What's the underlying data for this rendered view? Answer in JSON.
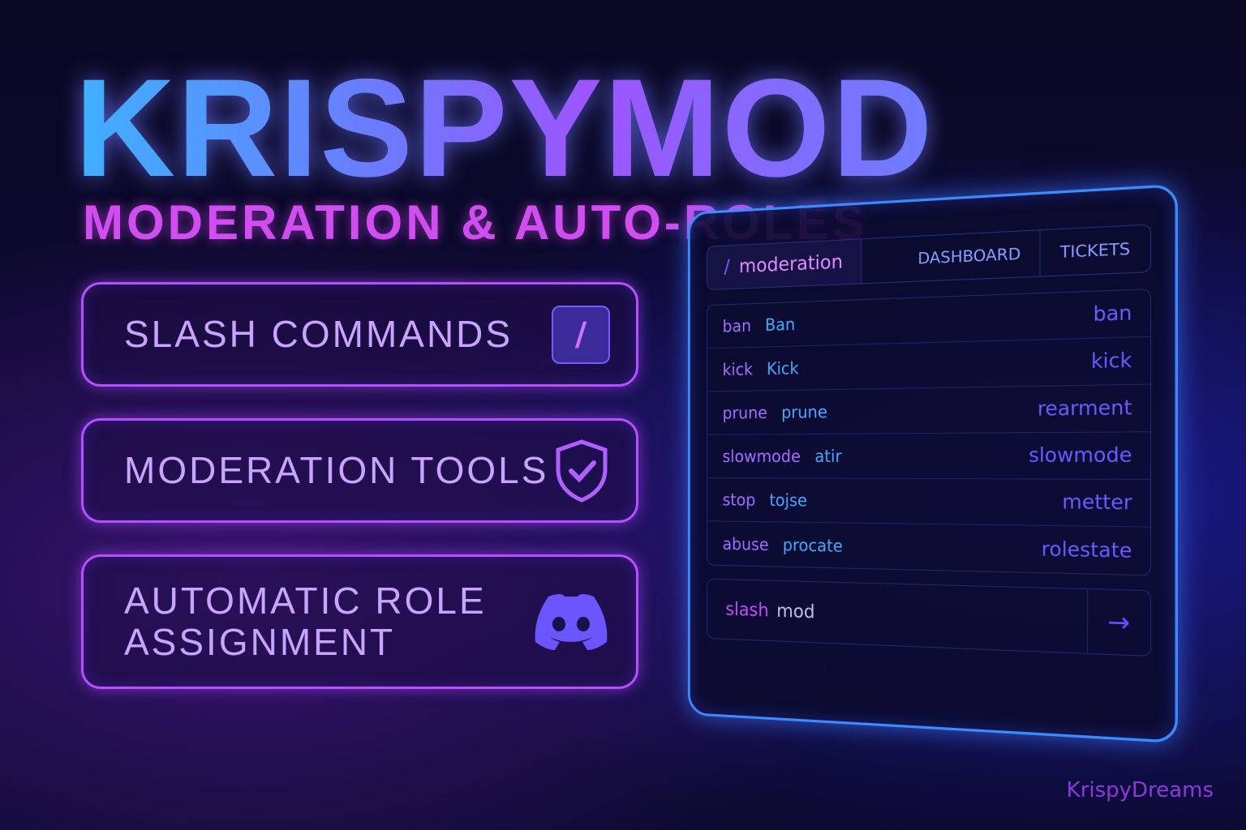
{
  "header": {
    "title": "KRISPYMOD",
    "subtitle": "MODERATION & AUTO-ROLES"
  },
  "features": [
    {
      "label": "SLASH COMMANDS",
      "icon": "slash-icon"
    },
    {
      "label": "MODERATION TOOLS",
      "icon": "shield-check-icon"
    },
    {
      "label": "AUTOMATIC ROLE ASSIGNMENT",
      "icon": "discord-icon"
    }
  ],
  "panel": {
    "tabs": [
      {
        "prefix": "/",
        "label": "moderation"
      },
      {
        "label": "DASHBOARD"
      },
      {
        "label": "TICKETS"
      }
    ],
    "rows": [
      {
        "command": "ban",
        "name": "Ban",
        "value": "ban"
      },
      {
        "command": "kick",
        "name": "Kick",
        "value": "kick"
      },
      {
        "command": "prune",
        "name": "prune",
        "value": "rearment"
      },
      {
        "command": "slowmode",
        "name": "atir",
        "value": "slowmode"
      },
      {
        "command": "stop",
        "name": "tojse",
        "value": "metter"
      },
      {
        "command": "abuse",
        "name": "procate",
        "value": "rolestate"
      }
    ],
    "input": {
      "prefix": "slash",
      "value": "mod",
      "submit_icon": "arrow-right-icon",
      "submit_glyph": "→"
    }
  },
  "brand": "KrispyDreams",
  "colors": {
    "accent_purple": "#b450ff",
    "accent_blue": "#3d8bff",
    "magenta": "#d04df0"
  }
}
